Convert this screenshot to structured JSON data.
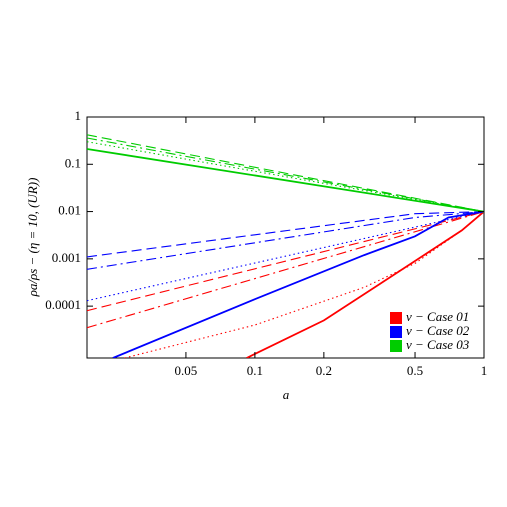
{
  "chart_data": {
    "type": "line",
    "log_x": true,
    "log_y": true,
    "xlabel": "a",
    "ylabel": "ρa/ρs − (η = 10, (UR))",
    "xlim": [
      0.0185,
      1
    ],
    "ylim": [
      8e-06,
      1
    ],
    "xticks": [
      0.05,
      0.1,
      0.2,
      0.5,
      1
    ],
    "yticks": [
      0.0001,
      0.001,
      0.01,
      0.1,
      1
    ],
    "legend": [
      {
        "label": "ν − Case 01",
        "color": "#ff0000"
      },
      {
        "label": "ν − Case 02",
        "color": "#0000ff"
      },
      {
        "label": "ν − Case 03",
        "color": "#00cc00"
      }
    ],
    "legend_position": "lower right",
    "series": [
      {
        "color": "#ff0000",
        "style": "solid",
        "x": [
          0.092,
          0.2,
          0.5,
          0.8,
          1
        ],
        "values": [
          8e-06,
          5e-05,
          0.0009,
          0.004,
          0.01
        ]
      },
      {
        "color": "#ff0000",
        "style": "dashed",
        "x": [
          0.0185,
          1
        ],
        "values": [
          8e-05,
          0.01
        ]
      },
      {
        "color": "#ff0000",
        "style": "dashdot",
        "x": [
          0.0185,
          1
        ],
        "values": [
          3.5e-05,
          0.01
        ]
      },
      {
        "color": "#ff0000",
        "style": "dotted",
        "x": [
          0.027,
          0.1,
          0.3,
          0.5,
          0.8,
          1
        ],
        "values": [
          8e-06,
          4e-05,
          0.00025,
          0.0008,
          0.004,
          0.01
        ]
      },
      {
        "color": "#0000ff",
        "style": "solid",
        "x": [
          0.024,
          0.1,
          0.3,
          0.5,
          0.7,
          1
        ],
        "values": [
          8e-06,
          0.00014,
          0.0012,
          0.003,
          0.0075,
          0.01
        ]
      },
      {
        "color": "#0000ff",
        "style": "dashed",
        "x": [
          0.0185,
          0.5,
          1
        ],
        "values": [
          0.0011,
          0.009,
          0.01
        ]
      },
      {
        "color": "#0000ff",
        "style": "dashdot",
        "x": [
          0.0185,
          0.5,
          1
        ],
        "values": [
          0.0006,
          0.0075,
          0.01
        ]
      },
      {
        "color": "#0000ff",
        "style": "dotted",
        "x": [
          0.0185,
          1
        ],
        "values": [
          0.00013,
          0.01
        ]
      },
      {
        "color": "#00cc00",
        "style": "solid",
        "x": [
          0.0185,
          1
        ],
        "values": [
          0.21,
          0.01
        ]
      },
      {
        "color": "#00cc00",
        "style": "dashed",
        "x": [
          0.0185,
          1
        ],
        "values": [
          0.42,
          0.01
        ]
      },
      {
        "color": "#00cc00",
        "style": "dashdot",
        "x": [
          0.0185,
          1
        ],
        "values": [
          0.36,
          0.01
        ]
      },
      {
        "color": "#00cc00",
        "style": "dotted",
        "x": [
          0.0185,
          1
        ],
        "values": [
          0.3,
          0.01
        ]
      }
    ]
  }
}
